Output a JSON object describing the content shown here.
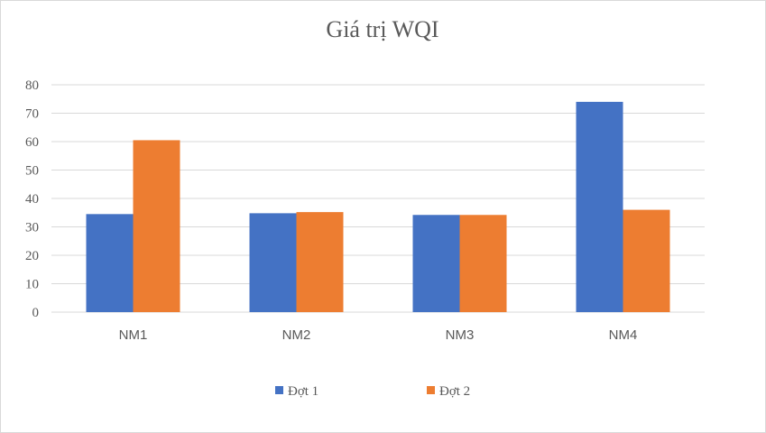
{
  "chart_data": {
    "type": "bar",
    "title": "Giá trị WQI",
    "categories": [
      "NM1",
      "NM2",
      "NM3",
      "NM4"
    ],
    "series": [
      {
        "name": "Đợt 1",
        "values": [
          34.5,
          34.8,
          34.2,
          74.0
        ],
        "color": "#4472c4"
      },
      {
        "name": "Đợt 2",
        "values": [
          60.5,
          35.2,
          34.2,
          36.0
        ],
        "color": "#ed7d31"
      }
    ],
    "xlabel": "",
    "ylabel": "",
    "ylim": [
      0,
      80
    ],
    "yticks": [
      0,
      10,
      20,
      30,
      40,
      50,
      60,
      70,
      80
    ],
    "grid": true,
    "legend_position": "bottom"
  }
}
